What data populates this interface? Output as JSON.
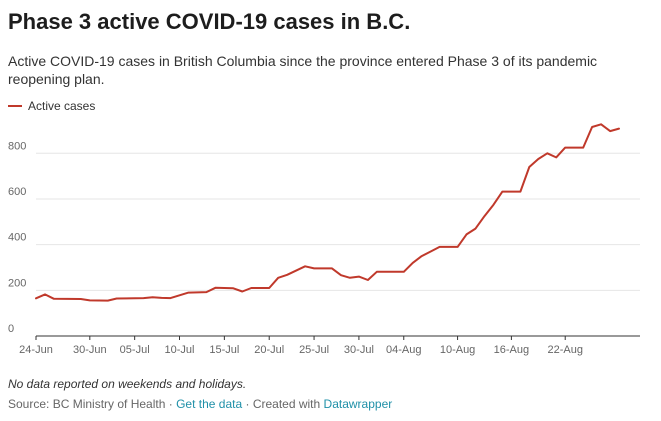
{
  "title": "Phase 3 active COVID-19 cases in B.C.",
  "subtitle": "Active COVID-19 cases in British Columbia since the province entered Phase 3 of its pandemic reopening plan.",
  "note": "No data reported on weekends and holidays.",
  "footer": {
    "source": "Source: BC Ministry of Health",
    "separator": "·",
    "get_data": "Get the data",
    "created_with": "Created with",
    "tool": "Datawrapper"
  },
  "chart_data": {
    "type": "line",
    "title": "Phase 3 active COVID-19 cases in B.C.",
    "xlabel": "",
    "ylabel": "",
    "ylim": [
      0,
      950
    ],
    "yticks": [
      0,
      200,
      400,
      600,
      800
    ],
    "xlim": [
      "2020-06-24",
      "2020-08-29"
    ],
    "xticks": [
      {
        "date": "2020-06-24",
        "label": "24-Jun"
      },
      {
        "date": "2020-06-30",
        "label": "30-Jun"
      },
      {
        "date": "2020-07-05",
        "label": "05-Jul"
      },
      {
        "date": "2020-07-10",
        "label": "10-Jul"
      },
      {
        "date": "2020-07-15",
        "label": "15-Jul"
      },
      {
        "date": "2020-07-20",
        "label": "20-Jul"
      },
      {
        "date": "2020-07-25",
        "label": "25-Jul"
      },
      {
        "date": "2020-07-30",
        "label": "30-Jul"
      },
      {
        "date": "2020-08-04",
        "label": "04-Aug"
      },
      {
        "date": "2020-08-10",
        "label": "10-Aug"
      },
      {
        "date": "2020-08-16",
        "label": "16-Aug"
      },
      {
        "date": "2020-08-22",
        "label": "22-Aug"
      }
    ],
    "grid": true,
    "legend": "top-left",
    "colors": {
      "line": "#c0392b",
      "grid": "#e6e6e6",
      "axis": "#333333"
    },
    "series": [
      {
        "name": "Active cases",
        "points": [
          {
            "x": "2020-06-24",
            "y": 165
          },
          {
            "x": "2020-06-25",
            "y": 182
          },
          {
            "x": "2020-06-26",
            "y": 163
          },
          {
            "x": "2020-06-29",
            "y": 162
          },
          {
            "x": "2020-06-30",
            "y": 156
          },
          {
            "x": "2020-07-02",
            "y": 155
          },
          {
            "x": "2020-07-03",
            "y": 164
          },
          {
            "x": "2020-07-06",
            "y": 166
          },
          {
            "x": "2020-07-07",
            "y": 170
          },
          {
            "x": "2020-07-08",
            "y": 167
          },
          {
            "x": "2020-07-09",
            "y": 166
          },
          {
            "x": "2020-07-10",
            "y": 178
          },
          {
            "x": "2020-07-11",
            "y": 190
          },
          {
            "x": "2020-07-13",
            "y": 192
          },
          {
            "x": "2020-07-14",
            "y": 211
          },
          {
            "x": "2020-07-16",
            "y": 209
          },
          {
            "x": "2020-07-17",
            "y": 195
          },
          {
            "x": "2020-07-18",
            "y": 210
          },
          {
            "x": "2020-07-20",
            "y": 210
          },
          {
            "x": "2020-07-21",
            "y": 255
          },
          {
            "x": "2020-07-22",
            "y": 268
          },
          {
            "x": "2020-07-24",
            "y": 305
          },
          {
            "x": "2020-07-25",
            "y": 296
          },
          {
            "x": "2020-07-27",
            "y": 296
          },
          {
            "x": "2020-07-28",
            "y": 266
          },
          {
            "x": "2020-07-29",
            "y": 255
          },
          {
            "x": "2020-07-30",
            "y": 260
          },
          {
            "x": "2020-07-31",
            "y": 245
          },
          {
            "x": "2020-08-01",
            "y": 281
          },
          {
            "x": "2020-08-04",
            "y": 281
          },
          {
            "x": "2020-08-05",
            "y": 320
          },
          {
            "x": "2020-08-06",
            "y": 350
          },
          {
            "x": "2020-08-07",
            "y": 370
          },
          {
            "x": "2020-08-08",
            "y": 390
          },
          {
            "x": "2020-08-10",
            "y": 390
          },
          {
            "x": "2020-08-11",
            "y": 445
          },
          {
            "x": "2020-08-12",
            "y": 470
          },
          {
            "x": "2020-08-13",
            "y": 525
          },
          {
            "x": "2020-08-14",
            "y": 575
          },
          {
            "x": "2020-08-15",
            "y": 632
          },
          {
            "x": "2020-08-17",
            "y": 632
          },
          {
            "x": "2020-08-18",
            "y": 740
          },
          {
            "x": "2020-08-19",
            "y": 775
          },
          {
            "x": "2020-08-20",
            "y": 800
          },
          {
            "x": "2020-08-21",
            "y": 782
          },
          {
            "x": "2020-08-22",
            "y": 825
          },
          {
            "x": "2020-08-24",
            "y": 825
          },
          {
            "x": "2020-08-25",
            "y": 915
          },
          {
            "x": "2020-08-26",
            "y": 927
          },
          {
            "x": "2020-08-27",
            "y": 897
          },
          {
            "x": "2020-08-28",
            "y": 908
          }
        ]
      }
    ]
  }
}
